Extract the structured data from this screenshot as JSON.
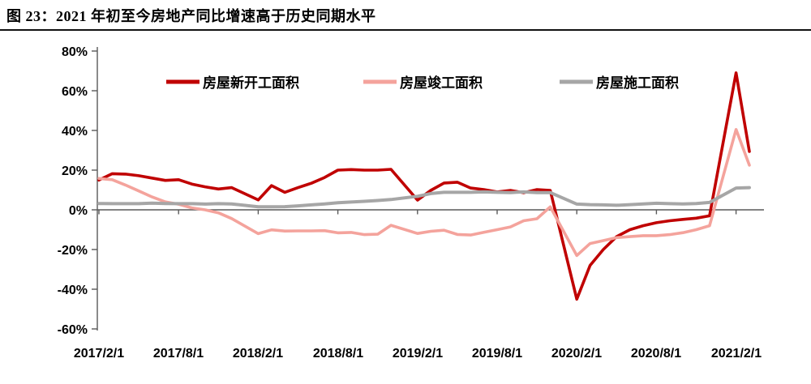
{
  "title": "图 23：2021 年初至今房地产同比增速高于历史同期水平",
  "chart_data": {
    "type": "line",
    "title": "图 23：2021 年初至今房地产同比增速高于历史同期水平",
    "xlabel": "",
    "ylabel": "",
    "unit": "%",
    "grid": "off",
    "legend_position": "top",
    "y_axis": {
      "min": -60,
      "max": 80,
      "step": 20,
      "tick_labels": [
        "80%",
        "60%",
        "40%",
        "20%",
        "0%",
        "-20%",
        "-40%",
        "-60%"
      ]
    },
    "x_axis": {
      "tick_labels": [
        "2017/2/1",
        "2017/8/1",
        "2018/2/1",
        "2018/8/1",
        "2019/2/1",
        "2019/8/1",
        "2020/2/1",
        "2020/8/1",
        "2021/2/1"
      ]
    },
    "dates": [
      "2017/2",
      "2017/3",
      "2017/4",
      "2017/5",
      "2017/6",
      "2017/7",
      "2017/8",
      "2017/9",
      "2017/10",
      "2017/11",
      "2017/12",
      "2018/2",
      "2018/3",
      "2018/4",
      "2018/5",
      "2018/6",
      "2018/7",
      "2018/8",
      "2018/9",
      "2018/10",
      "2018/11",
      "2018/12",
      "2019/2",
      "2019/3",
      "2019/4",
      "2019/5",
      "2019/6",
      "2019/7",
      "2019/8",
      "2019/9",
      "2019/10",
      "2019/11",
      "2019/12",
      "2020/2",
      "2020/3",
      "2020/4",
      "2020/5",
      "2020/6",
      "2020/7",
      "2020/8",
      "2020/9",
      "2020/10",
      "2020/11",
      "2020/12",
      "2021/2",
      "2021/3"
    ],
    "series": [
      {
        "name": "房屋新开工面积",
        "color": "#C00000",
        "values": [
          15.0,
          18.2,
          18.0,
          17.2,
          16.0,
          14.8,
          15.2,
          13.0,
          11.6,
          10.5,
          11.2,
          5.0,
          12.2,
          8.8,
          11.2,
          13.4,
          16.3,
          20.0,
          20.3,
          20.0,
          20.0,
          20.4,
          4.9,
          9.8,
          13.5,
          13.9,
          11.0,
          10.2,
          9.0,
          9.8,
          8.6,
          10.2,
          9.8,
          -45.0,
          -28.0,
          -20.0,
          -13.5,
          -10.0,
          -8.0,
          -6.5,
          -5.5,
          -4.8,
          -4.2,
          -3.0,
          69.0,
          29.4
        ]
      },
      {
        "name": "房屋竣工面积",
        "color": "#F4A39C",
        "values": [
          15.8,
          15.2,
          12.5,
          9.5,
          6.5,
          4.0,
          2.8,
          1.0,
          0.0,
          -1.5,
          -4.4,
          -12.0,
          -10.1,
          -10.7,
          -10.6,
          -10.6,
          -10.5,
          -11.6,
          -11.4,
          -12.5,
          -12.3,
          -7.8,
          -11.9,
          -10.8,
          -10.3,
          -12.4,
          -12.7,
          -11.3,
          -10.0,
          -8.6,
          -5.5,
          -4.5,
          1.5,
          -23.0,
          -17.0,
          -15.5,
          -14.0,
          -13.5,
          -13.0,
          -13.0,
          -12.5,
          -11.5,
          -10.0,
          -8.0,
          40.5,
          22.5
        ]
      },
      {
        "name": "房屋施工面积",
        "color": "#A6A6A6",
        "values": [
          3.2,
          3.1,
          3.1,
          3.1,
          3.4,
          3.2,
          3.1,
          3.1,
          2.9,
          3.1,
          3.0,
          1.5,
          1.5,
          1.6,
          2.0,
          2.5,
          3.0,
          3.6,
          3.9,
          4.3,
          4.7,
          5.2,
          6.8,
          8.2,
          8.8,
          8.8,
          8.8,
          9.0,
          8.8,
          8.7,
          9.0,
          8.7,
          8.7,
          2.9,
          2.6,
          2.5,
          2.3,
          2.6,
          3.0,
          3.3,
          3.1,
          3.0,
          3.2,
          3.7,
          11.0,
          11.2
        ]
      }
    ],
    "colors": {
      "axis": "#595959",
      "divider": "#111111",
      "text": "#000000"
    }
  }
}
